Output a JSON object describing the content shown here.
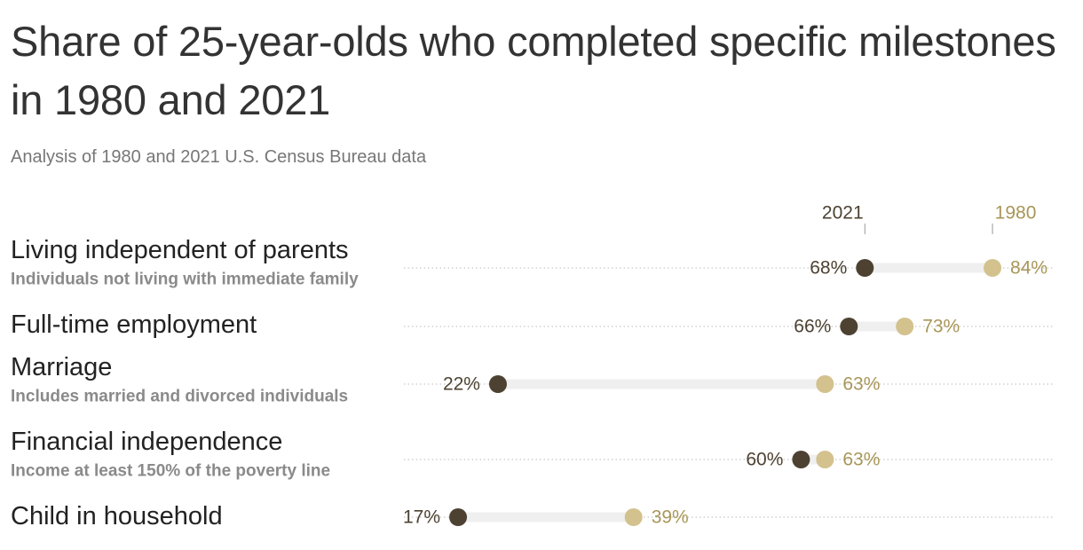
{
  "title": "Share of 25-year-olds who completed specific milestones in 1980 and 2021",
  "subtitle": "Analysis of 1980 and 2021 U.S. Census Bureau data",
  "colors": {
    "series_2021": "#4d4232",
    "series_1980": "#d3c28e",
    "series_1980_text": "#a89658",
    "range_bar": "#efefef",
    "dotted_line": "#c8c8c8",
    "label_text": "#222222",
    "sublabel_text": "#8a8a8a"
  },
  "chart_data": {
    "type": "dot-range",
    "title": "Share of 25-year-olds who completed specific milestones in 1980 and 2021",
    "subtitle": "Analysis of 1980 and 2021 U.S. Census Bureau data",
    "unit": "%",
    "series": [
      {
        "name": "2021",
        "values": [
          68,
          66,
          22,
          60,
          17
        ]
      },
      {
        "name": "1980",
        "values": [
          84,
          73,
          63,
          63,
          39
        ]
      }
    ],
    "categories": [
      "Living independent of parents",
      "Full-time employment",
      "Marriage",
      "Financial independence",
      "Child in household"
    ],
    "category_notes": [
      "Individuals not living with immediate family",
      "",
      "Includes married and divorced individuals",
      "Income at least 150% of the poverty line",
      ""
    ],
    "legend_placement": "top, labels above the first row's dots"
  }
}
